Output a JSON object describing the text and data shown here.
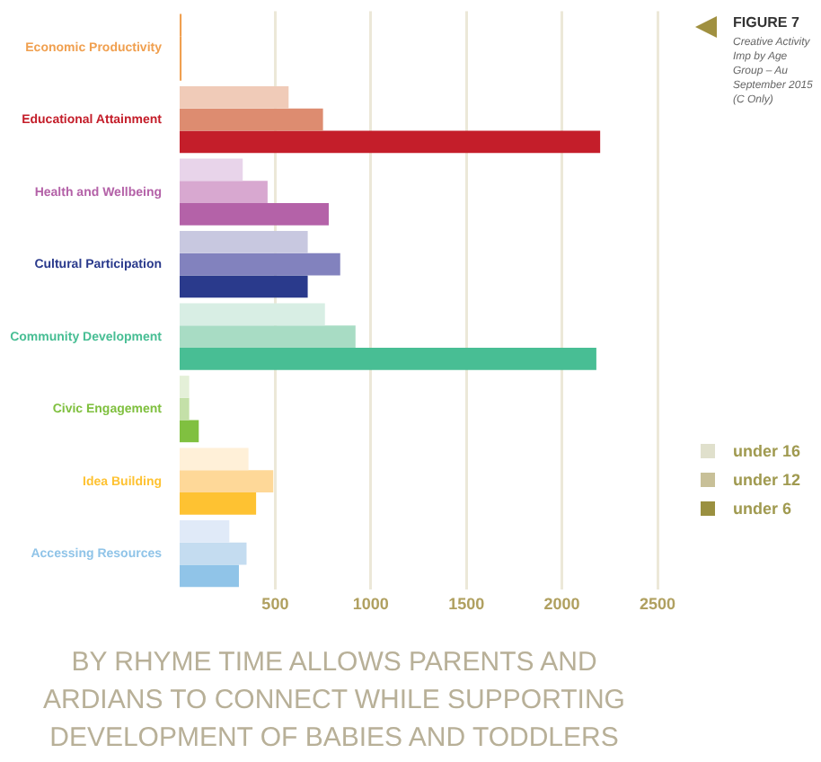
{
  "chart_data": {
    "type": "bar",
    "orientation": "horizontal",
    "title": "FIGURE 7",
    "subtitle": "Creative Activity Imp by Age Group – Au September 2015 (C Only)",
    "categories": [
      "Economic Productivity",
      "Educational Attainment",
      "Health and Wellbeing",
      "Cultural Participation",
      "Community Development",
      "Civic Engagement",
      "Idea Building",
      "Accessing Resources"
    ],
    "series": [
      {
        "name": "under 16",
        "color": "#e0e0cc",
        "colors": [
          "#f0a050",
          "#f0cbb8",
          "#e8d4ea",
          "#c8c8e0",
          "#d8eee4",
          "#e4f0d8",
          "#fff0d8",
          "#e0eaf8"
        ],
        "values": [
          10,
          570,
          330,
          670,
          760,
          50,
          360,
          260
        ]
      },
      {
        "name": "under 12",
        "color": "#c8c098",
        "colors": [
          "#f0a050",
          "#dd8c70",
          "#d8a8d0",
          "#8282be",
          "#a8dcc4",
          "#c4e0a8",
          "#fed898",
          "#c4dcf0"
        ],
        "values": [
          10,
          750,
          460,
          840,
          920,
          50,
          490,
          350
        ]
      },
      {
        "name": "under 6",
        "color": "#9a9040",
        "colors": [
          "#f0a050",
          "#c41e2a",
          "#b462a8",
          "#2a3a8c",
          "#48be94",
          "#80c040",
          "#fec232",
          "#90c4e8"
        ],
        "values": [
          10,
          2200,
          780,
          670,
          2180,
          100,
          400,
          310
        ]
      }
    ],
    "xlim": [
      0,
      2500
    ],
    "xticks": [
      500,
      1000,
      1500,
      2000,
      2500
    ],
    "grid": "x",
    "legend": "right",
    "annotations": [
      "BY RHYME TIME ALLOWS PARENTS AND",
      "ARDIANS TO CONNECT WHILE SUPPORTING",
      "DEVELOPMENT OF BABIES AND TODDLERS"
    ]
  }
}
